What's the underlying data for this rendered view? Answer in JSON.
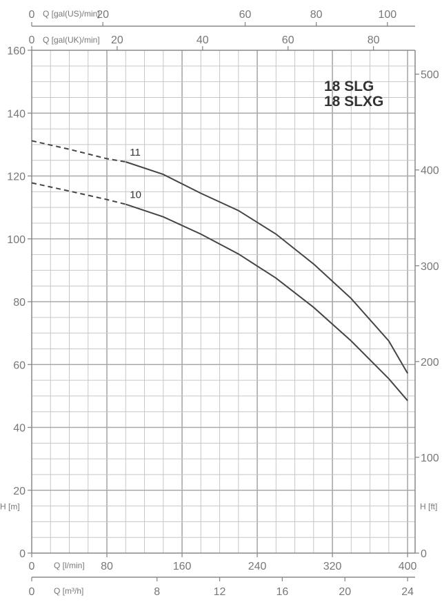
{
  "chart_data": {
    "type": "line",
    "title_lines": [
      "18 SLG",
      "18 SLXG"
    ],
    "x_axis": {
      "unit_label": "Q [l/min]",
      "ticks": [
        "0",
        "80",
        "160",
        "240",
        "320",
        "400"
      ],
      "tick_values": [
        0,
        80,
        160,
        240,
        320,
        400
      ],
      "xlim": [
        0,
        408
      ]
    },
    "x_axis_m3h": {
      "unit_label": "Q [m³/h]",
      "ticks": [
        "0",
        "8",
        "12",
        "16",
        "20",
        "24"
      ],
      "tick_values": [
        0,
        8,
        12,
        16,
        20,
        24
      ]
    },
    "x_axis_gal_us": {
      "unit_label": "Q [gal(US)/min]",
      "ticks": [
        "0",
        "20",
        "60",
        "80",
        "100"
      ],
      "tick_values": [
        0,
        20,
        60,
        80,
        100
      ]
    },
    "x_axis_gal_uk": {
      "unit_label": "Q [gal(UK)/min]",
      "ticks": [
        "0",
        "20",
        "40",
        "60",
        "80"
      ],
      "tick_values": [
        0,
        20,
        40,
        60,
        80
      ]
    },
    "y_axis": {
      "unit_label": "H [m]",
      "ticks": [
        "0",
        "20",
        "40",
        "60",
        "80",
        "100",
        "120",
        "140",
        "160"
      ],
      "tick_values": [
        0,
        20,
        40,
        60,
        80,
        100,
        120,
        140,
        160
      ],
      "ylim": [
        0,
        160
      ]
    },
    "y_axis_ft": {
      "unit_label": "H [ft]",
      "ticks": [
        "0",
        "100",
        "200",
        "300",
        "400",
        "500"
      ],
      "tick_values": [
        0,
        100,
        200,
        300,
        400,
        500
      ]
    },
    "grid": true,
    "series": [
      {
        "name": "11",
        "dashed_points": [
          [
            0,
            131.2
          ],
          [
            40,
            128.5
          ],
          [
            80,
            125.5
          ],
          [
            100,
            124.5
          ]
        ],
        "points": [
          [
            100,
            124.5
          ],
          [
            140,
            120.5
          ],
          [
            180,
            114.5
          ],
          [
            220,
            109
          ],
          [
            260,
            101.5
          ],
          [
            300,
            92
          ],
          [
            340,
            81
          ],
          [
            380,
            67.5
          ],
          [
            400,
            57.2
          ]
        ]
      },
      {
        "name": "10",
        "dashed_points": [
          [
            0,
            117.8
          ],
          [
            40,
            115.2
          ],
          [
            80,
            112.5
          ],
          [
            100,
            111
          ]
        ],
        "points": [
          [
            100,
            111
          ],
          [
            140,
            107
          ],
          [
            180,
            101.5
          ],
          [
            220,
            95.2
          ],
          [
            260,
            87.5
          ],
          [
            300,
            78.2
          ],
          [
            340,
            67.5
          ],
          [
            380,
            55.5
          ],
          [
            400,
            48.5
          ]
        ]
      }
    ]
  }
}
